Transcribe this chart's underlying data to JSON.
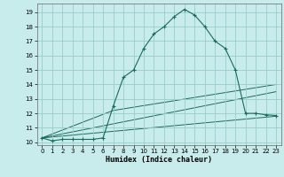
{
  "xlabel": "Humidex (Indice chaleur)",
  "bg_color": "#c8ecec",
  "grid_color": "#99cccc",
  "line_color": "#1a6b5a",
  "xlim": [
    -0.5,
    23.5
  ],
  "ylim": [
    9.8,
    19.6
  ],
  "xticks": [
    0,
    1,
    2,
    3,
    4,
    5,
    6,
    7,
    8,
    9,
    10,
    11,
    12,
    13,
    14,
    15,
    16,
    17,
    18,
    19,
    20,
    21,
    22,
    23
  ],
  "yticks": [
    10,
    11,
    12,
    13,
    14,
    15,
    16,
    17,
    18,
    19
  ],
  "main_x": [
    0,
    1,
    2,
    3,
    4,
    5,
    6,
    7,
    8,
    9,
    10,
    11,
    12,
    13,
    14,
    15,
    16,
    17,
    18,
    19,
    20,
    21,
    22,
    23
  ],
  "main_y": [
    10.3,
    10.1,
    10.2,
    10.2,
    10.2,
    10.2,
    10.3,
    12.5,
    14.5,
    15.0,
    16.5,
    17.5,
    18.0,
    18.7,
    19.2,
    18.8,
    18.0,
    17.0,
    16.5,
    15.0,
    12.0,
    12.0,
    11.9,
    11.85
  ],
  "line2_x": [
    0,
    23
  ],
  "line2_y": [
    10.3,
    13.5
  ],
  "line3_x": [
    0,
    23
  ],
  "line3_y": [
    10.3,
    11.8
  ],
  "line4_x": [
    0,
    7,
    23
  ],
  "line4_y": [
    10.3,
    12.2,
    14.0
  ],
  "xlabel_fontsize": 6.0,
  "tick_fontsize": 5.0
}
